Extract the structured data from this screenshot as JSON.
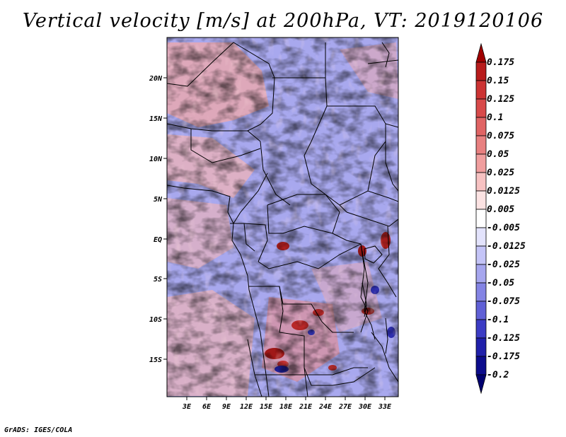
{
  "title": "Vertical velocity [m/s] at 200hPa, VT: 2019120106",
  "credit": "GrADS: IGES/COLA",
  "map": {
    "lat_ticks": [
      "20N",
      "15N",
      "10N",
      "5N",
      "EQ",
      "5S",
      "10S",
      "15S"
    ],
    "lon_ticks": [
      "3E",
      "6E",
      "9E",
      "12E",
      "15E",
      "18E",
      "21E",
      "24E",
      "27E",
      "30E",
      "33E"
    ],
    "lat_range": [
      -20,
      25
    ],
    "lon_range": [
      0,
      35
    ]
  },
  "colorbar": {
    "labels": [
      "0.175",
      "0.15",
      "0.125",
      "0.1",
      "0.075",
      "0.05",
      "0.025",
      "0.0125",
      "0.005",
      "-0.005",
      "-0.0125",
      "-0.025",
      "-0.05",
      "-0.075",
      "-0.1",
      "-0.125",
      "-0.175",
      "-0.2"
    ],
    "colors": [
      "#a00000",
      "#b81c1c",
      "#cc3333",
      "#d84a4a",
      "#e06464",
      "#e88080",
      "#f09e9e",
      "#f7c2c2",
      "#fce3e3",
      "#ffffff",
      "#e3e3fc",
      "#c4c4f7",
      "#a6a6ee",
      "#8484e4",
      "#6060d6",
      "#3c3cc4",
      "#2020aa",
      "#0c0c8c",
      "#000070"
    ]
  }
}
